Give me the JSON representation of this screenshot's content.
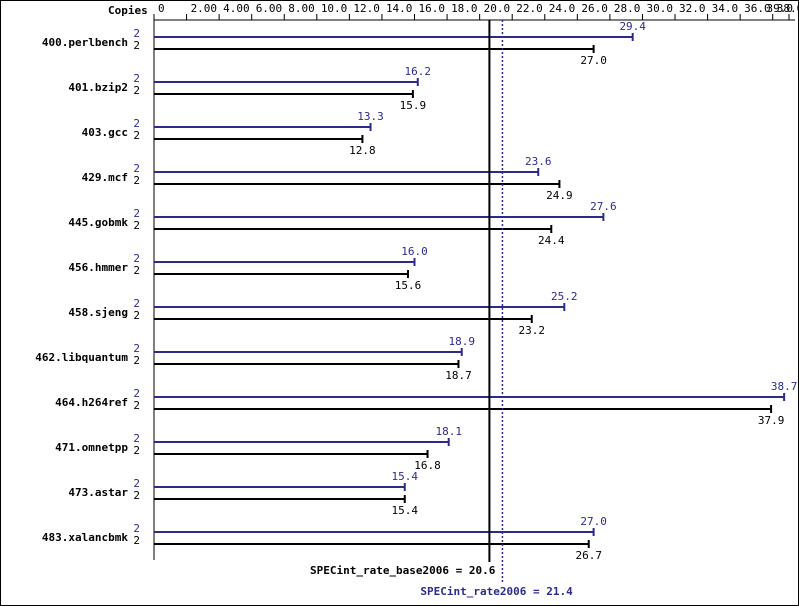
{
  "chart_data": {
    "type": "bar",
    "orientation": "horizontal",
    "axis_title": "Copies",
    "categories": [
      "400.perlbench",
      "401.bzip2",
      "403.gcc",
      "429.mcf",
      "445.gobmk",
      "456.hmmer",
      "458.sjeng",
      "462.libquantum",
      "464.h264ref",
      "471.omnetpp",
      "473.astar",
      "483.xalancbmk"
    ],
    "series": [
      {
        "color": "#2b2b8c",
        "copies": [
          2,
          2,
          2,
          2,
          2,
          2,
          2,
          2,
          2,
          2,
          2,
          2
        ],
        "values": [
          29.4,
          16.2,
          13.3,
          23.6,
          27.6,
          16.0,
          25.2,
          18.9,
          38.7,
          18.1,
          15.4,
          27.0
        ],
        "value_labels": [
          "29.4",
          "16.2",
          "13.3",
          "23.6",
          "27.6",
          "16.0",
          "25.2",
          "18.9",
          "38.7",
          "18.1",
          "15.4",
          "27.0"
        ]
      },
      {
        "color": "#000000",
        "copies": [
          2,
          2,
          2,
          2,
          2,
          2,
          2,
          2,
          2,
          2,
          2,
          2
        ],
        "values": [
          27.0,
          15.9,
          12.8,
          24.9,
          24.4,
          15.6,
          23.2,
          18.7,
          37.9,
          16.8,
          15.4,
          26.7
        ],
        "value_labels": [
          "27.0",
          "15.9",
          "12.8",
          "24.9",
          "24.4",
          "15.6",
          "23.2",
          "18.7",
          "37.9",
          "16.8",
          "15.4",
          "26.7"
        ]
      }
    ],
    "xlim": [
      0,
      39.0
    ],
    "xticks": [
      0,
      {
        "value": 2,
        "label": "2.00"
      },
      {
        "value": 4,
        "label": "4.00"
      },
      {
        "value": 6,
        "label": "6.00"
      },
      {
        "value": 8,
        "label": "8.00"
      },
      {
        "value": 10,
        "label": "10.0"
      },
      {
        "value": 12,
        "label": "12.0"
      },
      {
        "value": 14,
        "label": "14.0"
      },
      {
        "value": 16,
        "label": "16.0"
      },
      {
        "value": 18,
        "label": "18.0"
      },
      {
        "value": 20,
        "label": "20.0"
      },
      {
        "value": 22,
        "label": "22.0"
      },
      {
        "value": 24,
        "label": "24.0"
      },
      {
        "value": 26,
        "label": "26.0"
      },
      {
        "value": 28,
        "label": "28.0"
      },
      {
        "value": 30,
        "label": "30.0"
      },
      {
        "value": 32,
        "label": "32.0"
      },
      {
        "value": 34,
        "label": "34.0"
      },
      {
        "value": 36,
        "label": "36.0"
      },
      {
        "value": 38,
        "label": "38.0"
      },
      {
        "value": 39,
        "label": "39.0"
      }
    ],
    "reference_lines": [
      {
        "label": "SPECint_rate_base2006 = 20.6",
        "value": 20.6,
        "color": "#000000"
      },
      {
        "label": "SPECint_rate2006 = 21.4",
        "value": 21.4,
        "color": "#2b2b8c"
      }
    ]
  }
}
